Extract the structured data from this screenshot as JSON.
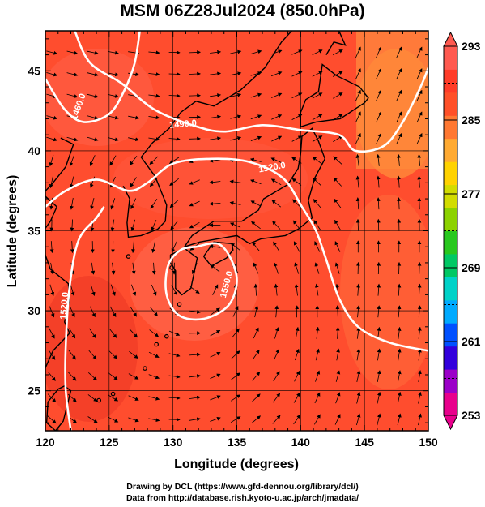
{
  "title": "MSM 06Z28Jul2024 (850.0hPa)",
  "axes": {
    "xlabel": "Longitude (degrees)",
    "ylabel": "Latitude  (degrees)",
    "xlim": [
      120,
      150
    ],
    "ylim": [
      22.5,
      47.5
    ],
    "xticks": [
      "120",
      "125",
      "130",
      "135",
      "140",
      "145",
      "150"
    ],
    "yticks": [
      "25",
      "30",
      "35",
      "40",
      "45"
    ],
    "grid": true
  },
  "colorbar": {
    "min": 253,
    "max": 293,
    "labels": [
      "293",
      "285",
      "277",
      "269",
      "261",
      "253"
    ],
    "colors": [
      "#e8008c",
      "#9b00c8",
      "#3200dc",
      "#0050ff",
      "#00aaff",
      "#00d2c8",
      "#00c864",
      "#28c81e",
      "#8cd200",
      "#d2dc00",
      "#ffd200",
      "#ffaa32",
      "#ff7832",
      "#ff5028",
      "#ff3c28",
      "#ff5a50"
    ]
  },
  "contours": [
    {
      "label": "1460.0"
    },
    {
      "label": "1490.0"
    },
    {
      "label": "1520.0"
    },
    {
      "label": "1520.0"
    },
    {
      "label": "1550.0"
    }
  ],
  "credits": {
    "line1": "Drawing by DCL (https://www.gfd-dennou.org/library/dcl/)",
    "line2": "Data from http://database.rish.kyoto-u.ac.jp/arch/jmadata/"
  },
  "colors": {
    "field_main": "#ff4d2e",
    "field_dark": "#f03a26",
    "field_light": "#ff6a45",
    "field_warm": "#ff7a3a",
    "contour": "#ffffff",
    "land": "#000000"
  }
}
